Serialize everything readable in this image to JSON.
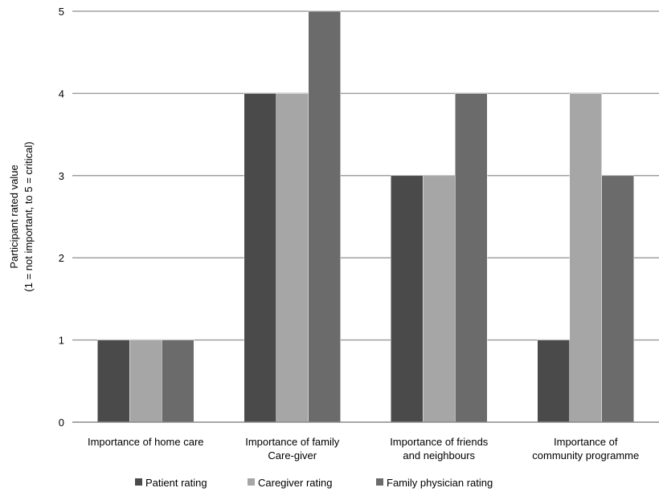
{
  "chart_data": {
    "type": "bar",
    "title": "",
    "xlabel": "",
    "ylabel_lines": [
      "Participant rated value",
      "(1 = not important, to 5 = critical)"
    ],
    "ylim": [
      0,
      5
    ],
    "yticks": [
      "0",
      "1",
      "2",
      "3",
      "4",
      "5"
    ],
    "grid": true,
    "legend_position": "bottom",
    "categories": [
      [
        "Importance of home care"
      ],
      [
        "Importance of family",
        "Care-giver"
      ],
      [
        "Importance of friends",
        "and neighbours"
      ],
      [
        "Importance of",
        "community programme"
      ]
    ],
    "series": [
      {
        "name": "Patient rating",
        "color": "#4a4a4a",
        "values": [
          1,
          4,
          3,
          1
        ]
      },
      {
        "name": "Caregiver rating",
        "color": "#a6a6a6",
        "values": [
          1,
          4,
          3,
          4
        ]
      },
      {
        "name": "Family physician rating",
        "color": "#6b6b6b",
        "values": [
          1,
          5,
          4,
          3
        ]
      }
    ]
  }
}
